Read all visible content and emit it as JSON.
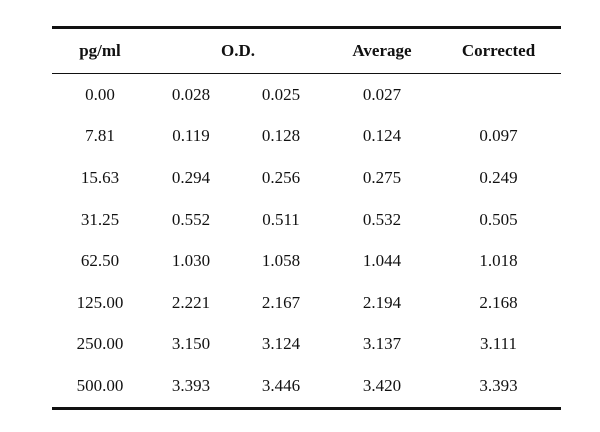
{
  "table": {
    "headers": {
      "concentration": "pg/ml",
      "od": "O.D.",
      "average": "Average",
      "corrected": "Corrected"
    },
    "rows": [
      {
        "conc": "0.00",
        "od1": "0.028",
        "od2": "0.025",
        "avg": "0.027",
        "corrected": ""
      },
      {
        "conc": "7.81",
        "od1": "0.119",
        "od2": "0.128",
        "avg": "0.124",
        "corrected": "0.097"
      },
      {
        "conc": "15.63",
        "od1": "0.294",
        "od2": "0.256",
        "avg": "0.275",
        "corrected": "0.249"
      },
      {
        "conc": "31.25",
        "od1": "0.552",
        "od2": "0.511",
        "avg": "0.532",
        "corrected": "0.505"
      },
      {
        "conc": "62.50",
        "od1": "1.030",
        "od2": "1.058",
        "avg": "1.044",
        "corrected": "1.018"
      },
      {
        "conc": "125.00",
        "od1": "2.221",
        "od2": "2.167",
        "avg": "2.194",
        "corrected": "2.168"
      },
      {
        "conc": "250.00",
        "od1": "3.150",
        "od2": "3.124",
        "avg": "3.137",
        "corrected": "3.111"
      },
      {
        "conc": "500.00",
        "od1": "3.393",
        "od2": "3.446",
        "avg": "3.420",
        "corrected": "3.393"
      }
    ]
  }
}
